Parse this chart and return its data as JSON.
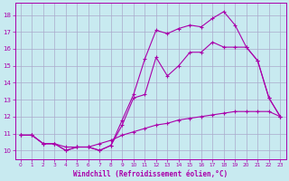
{
  "xlabel": "Windchill (Refroidissement éolien,°C)",
  "bg_color": "#c8eaf0",
  "line_color": "#aa00aa",
  "grid_color": "#aaaacc",
  "xlim": [
    -0.5,
    23.5
  ],
  "ylim": [
    9.5,
    18.7
  ],
  "xticks": [
    0,
    1,
    2,
    3,
    4,
    5,
    6,
    7,
    8,
    9,
    10,
    11,
    12,
    13,
    14,
    15,
    16,
    17,
    18,
    19,
    20,
    21,
    22,
    23
  ],
  "yticks": [
    10,
    11,
    12,
    13,
    14,
    15,
    16,
    17,
    18
  ],
  "line1_x": [
    0,
    1,
    2,
    3,
    4,
    5,
    6,
    7,
    8,
    9,
    10,
    11,
    12,
    13,
    14,
    15,
    16,
    17,
    18,
    19,
    20,
    21,
    22,
    23
  ],
  "line1_y": [
    10.9,
    10.9,
    10.4,
    10.4,
    10.0,
    10.2,
    10.2,
    10.0,
    10.3,
    11.8,
    13.3,
    15.4,
    17.1,
    16.9,
    17.2,
    17.4,
    17.3,
    17.8,
    18.2,
    17.4,
    16.1,
    15.3,
    13.1,
    12.0
  ],
  "line2_x": [
    0,
    1,
    2,
    3,
    4,
    5,
    6,
    7,
    8,
    9,
    10,
    11,
    12,
    13,
    14,
    15,
    16,
    17,
    18,
    19,
    20,
    21,
    22,
    23
  ],
  "line2_y": [
    10.9,
    10.9,
    10.4,
    10.4,
    10.0,
    10.2,
    10.2,
    10.0,
    10.3,
    11.5,
    13.1,
    13.3,
    15.5,
    14.4,
    15.0,
    15.8,
    15.8,
    16.4,
    16.1,
    16.1,
    16.1,
    15.3,
    13.1,
    12.0
  ],
  "line3_x": [
    0,
    1,
    2,
    3,
    4,
    5,
    6,
    7,
    8,
    9,
    10,
    11,
    12,
    13,
    14,
    15,
    16,
    17,
    18,
    19,
    20,
    21,
    22,
    23
  ],
  "line3_y": [
    10.9,
    10.9,
    10.4,
    10.4,
    10.2,
    10.2,
    10.2,
    10.4,
    10.6,
    10.9,
    11.1,
    11.3,
    11.5,
    11.6,
    11.8,
    11.9,
    12.0,
    12.1,
    12.2,
    12.3,
    12.3,
    12.3,
    12.3,
    12.0
  ]
}
